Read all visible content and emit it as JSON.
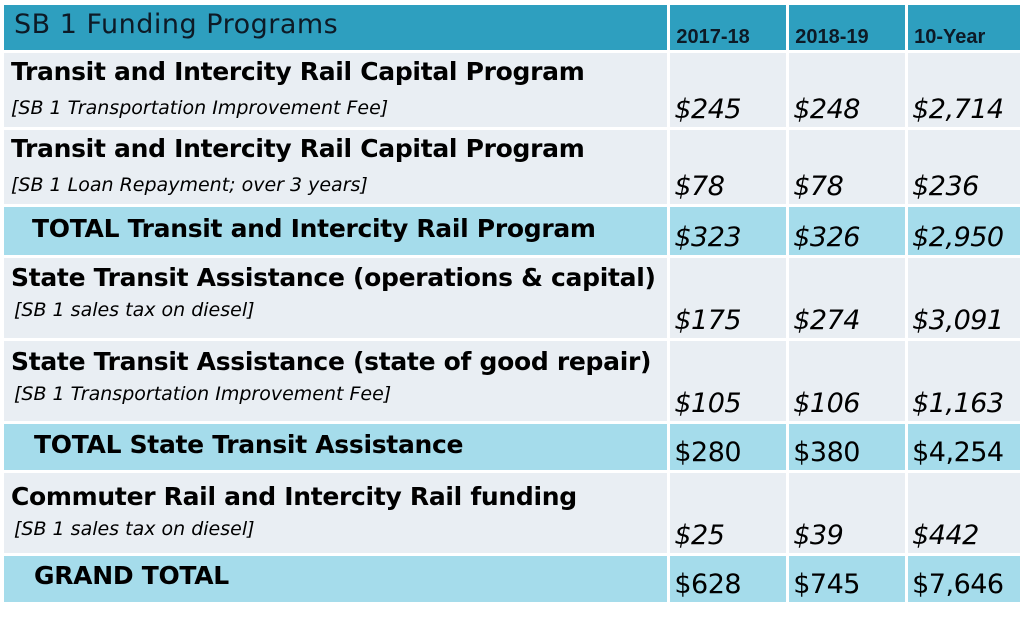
{
  "header": {
    "title": "SB 1 Funding Programs",
    "columns": [
      "2017-18",
      "2018-19",
      "10-Year"
    ]
  },
  "rows": [
    {
      "name": "Transit and Intercity Rail Capital Program",
      "sub": "[SB 1 Transportation Improvement Fee]",
      "values": [
        "$245",
        "$248",
        "$2,714"
      ]
    },
    {
      "name": "Transit and Intercity Rail Capital  Program",
      "sub": "[SB 1 Loan Repayment; over 3 years]",
      "values": [
        "$78",
        "$78",
        "$236"
      ]
    },
    {
      "name": "TOTAL Transit and Intercity Rail Program",
      "values": [
        "$323",
        "$326",
        "$2,950"
      ]
    },
    {
      "name": "State Transit Assistance (operations & capital)",
      "sub": "[SB 1 sales tax on diesel]",
      "values": [
        "$175",
        "$274",
        "$3,091"
      ]
    },
    {
      "name": "State Transit Assistance (state of good repair)",
      "sub": "[SB 1 Transportation Improvement Fee]",
      "values": [
        "$105",
        "$106",
        "$1,163"
      ]
    },
    {
      "name": "TOTAL State Transit Assistance",
      "values": [
        "$280",
        "$380",
        "$4,254"
      ]
    },
    {
      "name": "Commuter Rail and Intercity Rail funding",
      "sub": "[SB 1 sales tax on diesel]",
      "values": [
        "$25",
        "$39",
        "$442"
      ]
    },
    {
      "name": "GRAND TOTAL",
      "values": [
        "$628",
        "$745",
        "$7,646"
      ]
    }
  ],
  "colors": {
    "header": "#2e9fbf",
    "row": "#e9eef3",
    "total": "#a5dceb"
  }
}
